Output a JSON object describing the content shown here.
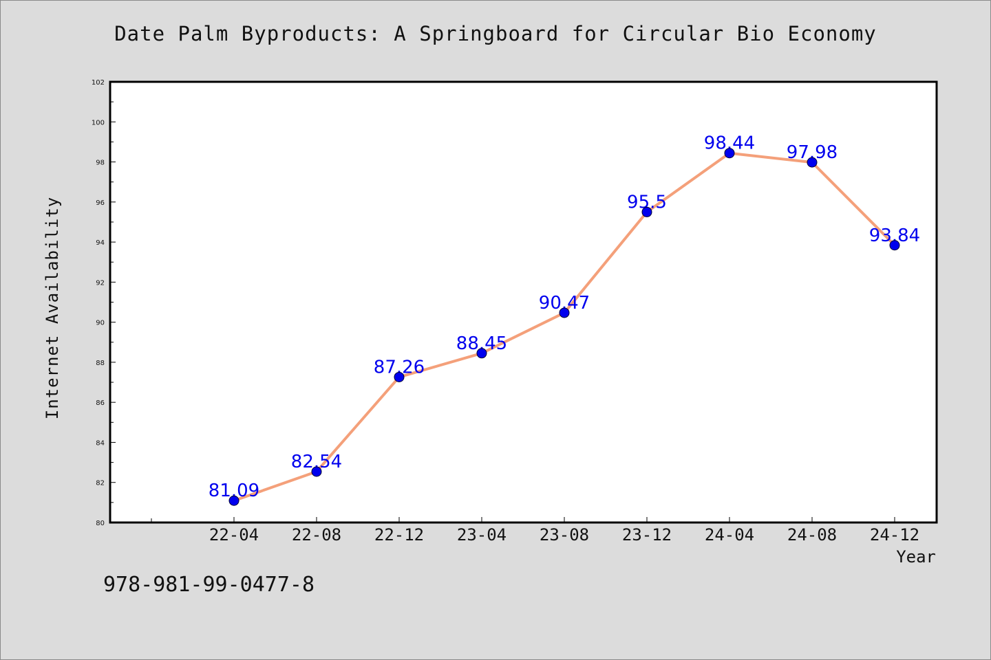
{
  "chart_data": {
    "type": "line",
    "title": "Date Palm Byproducts: A Springboard for Circular Bio Economy",
    "xlabel": "Year",
    "ylabel": "Internet Availability",
    "categories": [
      "22-04",
      "22-08",
      "22-12",
      "23-04",
      "23-08",
      "23-12",
      "24-04",
      "24-08",
      "24-12"
    ],
    "series": [
      {
        "values": [
          81.09,
          82.54,
          87.26,
          88.45,
          90.47,
          95.5,
          98.44,
          97.98,
          93.84
        ],
        "labels": [
          "81.09",
          "82.54",
          "87.26",
          "88.45",
          "90.47",
          "95.5",
          "98.44",
          "97.98",
          "93.84"
        ],
        "line_color": "#f4a07a",
        "marker_color": "#0000ee",
        "label_color": "#0000ee"
      }
    ],
    "ylim": [
      80,
      102
    ],
    "yticks": [
      80,
      82,
      84,
      86,
      88,
      90,
      92,
      94,
      96,
      98,
      100,
      102
    ],
    "grid": false,
    "legend": "none"
  },
  "footer": {
    "isbn": "978-981-99-0477-8"
  }
}
